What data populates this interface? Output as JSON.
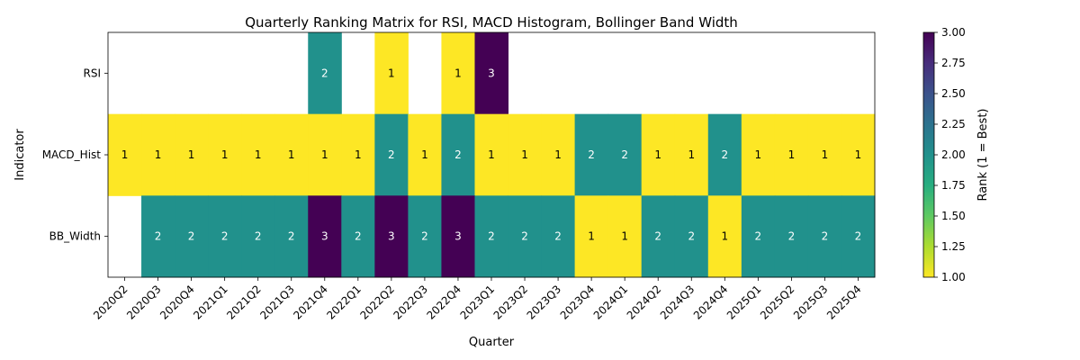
{
  "chart_data": {
    "type": "heatmap",
    "title": "Quarterly Ranking Matrix for RSI, MACD Histogram, Bollinger Band Width",
    "xlabel": "Quarter",
    "ylabel": "Indicator",
    "x": [
      "2020Q2",
      "2020Q3",
      "2020Q4",
      "2021Q1",
      "2021Q2",
      "2021Q3",
      "2021Q4",
      "2022Q1",
      "2022Q2",
      "2022Q3",
      "2022Q4",
      "2023Q1",
      "2023Q2",
      "2023Q3",
      "2023Q4",
      "2024Q1",
      "2024Q2",
      "2024Q3",
      "2024Q4",
      "2025Q1",
      "2025Q2",
      "2025Q3",
      "2025Q4"
    ],
    "y": [
      "RSI",
      "MACD_Hist",
      "BB_Width"
    ],
    "values": [
      [
        null,
        null,
        null,
        null,
        null,
        null,
        2,
        null,
        1,
        null,
        1,
        3,
        null,
        null,
        null,
        null,
        null,
        null,
        null,
        null,
        null,
        null,
        null
      ],
      [
        1,
        1,
        1,
        1,
        1,
        1,
        1,
        1,
        2,
        1,
        2,
        1,
        1,
        1,
        2,
        2,
        1,
        1,
        2,
        1,
        1,
        1,
        1
      ],
      [
        null,
        2,
        2,
        2,
        2,
        2,
        3,
        2,
        3,
        2,
        3,
        2,
        2,
        2,
        1,
        1,
        2,
        2,
        1,
        2,
        2,
        2,
        2
      ]
    ],
    "colorbar": {
      "label": "Rank (1 = Best)",
      "range": [
        1.0,
        3.0
      ],
      "ticks": [
        "1.00",
        "1.25",
        "1.50",
        "1.75",
        "2.00",
        "2.25",
        "2.50",
        "2.75",
        "3.00"
      ],
      "colormap": "viridis_r"
    },
    "colors": {
      "1": "#fde725",
      "2": "#21918c",
      "3": "#440154"
    }
  }
}
